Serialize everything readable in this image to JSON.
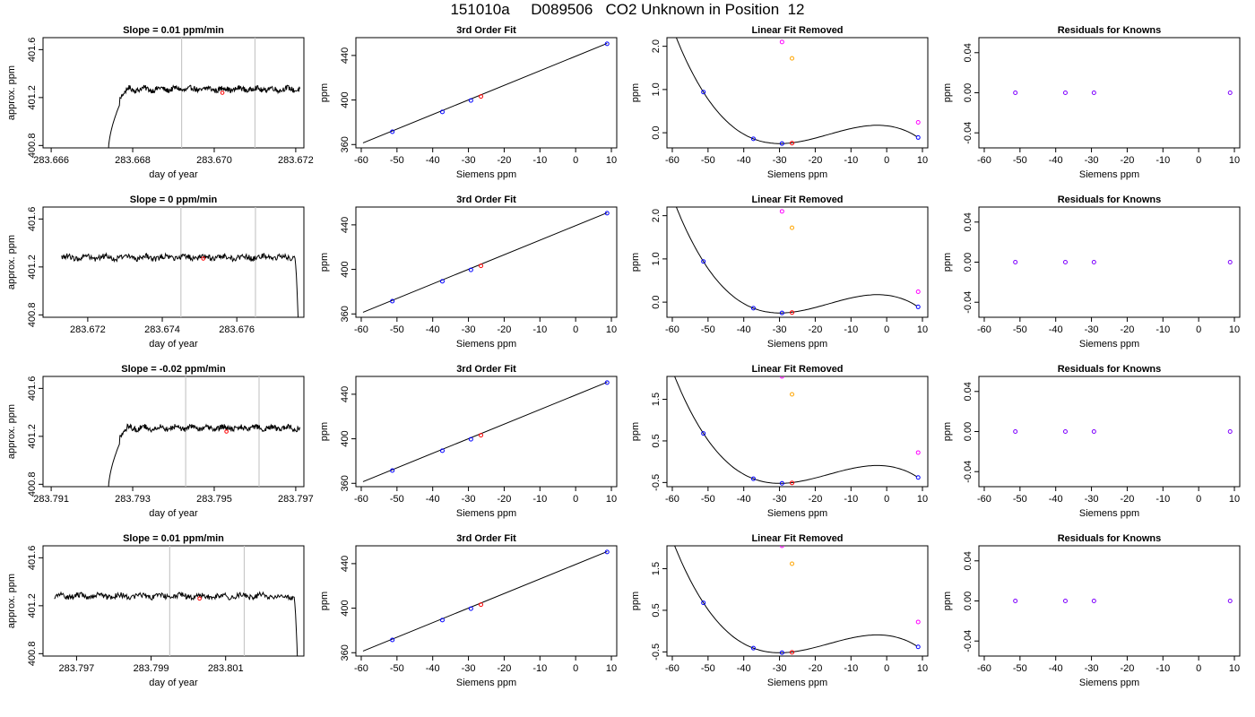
{
  "page": {
    "title": "151010a     D089506   CO2 Unknown in Position  12"
  },
  "chart_data": [
    {
      "type": "line",
      "title": "Slope =  0.01  ppm/min",
      "xlabel": "day of year",
      "ylabel": "approx. ppm",
      "xlim": [
        283.6658,
        283.6722
      ],
      "ylim": [
        400.78,
        401.7
      ],
      "xticks": [
        283.666,
        283.668,
        283.67,
        283.672
      ],
      "xtick_labels": [
        "283.666",
        "283.668",
        "283.670",
        "283.672"
      ],
      "yticks": [
        400.8,
        401.2,
        401.6
      ],
      "ytick_labels": [
        "400.8",
        "401.2",
        "401.6"
      ],
      "vlines": [
        283.6692,
        283.671
      ],
      "highlight": {
        "x": 283.6702,
        "y": 401.24
      },
      "shape": "rise",
      "start": 283.6674,
      "end": 283.6721,
      "level": 401.27
    },
    {
      "type": "scatter",
      "title": "3rd Order Fit",
      "xlabel": "Siemens ppm",
      "ylabel": "ppm",
      "xlim": [
        -61.5,
        11.5
      ],
      "ylim": [
        357,
        456
      ],
      "xticks": [
        -60,
        -50,
        -40,
        -30,
        -20,
        -10,
        0,
        10
      ],
      "xtick_labels": [
        "-60",
        "-50",
        "-40",
        "-30",
        "-20",
        "-10",
        "0",
        "10"
      ],
      "yticks": [
        360,
        400,
        440
      ],
      "ytick_labels": [
        "360",
        "400",
        "440"
      ],
      "fit_line": {
        "x": [
          -59.5,
          8.8
        ],
        "y": [
          361.5,
          450.8
        ]
      },
      "series": [
        {
          "role": "knowns",
          "color": "#0000ff",
          "x": [
            -51.3,
            -37.3,
            -29.3,
            8.8
          ],
          "y": [
            371.5,
            389.3,
            399.6,
            450.5
          ]
        },
        {
          "role": "unknown",
          "color": "#ff0000",
          "x": [
            -26.5
          ],
          "y": [
            403.2
          ]
        }
      ]
    },
    {
      "type": "scatter",
      "title": "Linear Fit Removed",
      "xlabel": "Siemens ppm",
      "ylabel": "ppm",
      "xlim": [
        -61.5,
        11.5
      ],
      "ylim": [
        -0.35,
        2.2
      ],
      "xticks": [
        -60,
        -50,
        -40,
        -30,
        -20,
        -10,
        0,
        10
      ],
      "xtick_labels": [
        "-60",
        "-50",
        "-40",
        "-30",
        "-20",
        "-10",
        "0",
        "10"
      ],
      "yticks": [
        0.0,
        1.0,
        2.0
      ],
      "ytick_labels": [
        "0.0",
        "1.0",
        "2.0"
      ],
      "curve": {
        "a": 0.0002,
        "b": 0.0098,
        "c": 0,
        "d": 0
      },
      "series": [
        {
          "role": "knowns",
          "color": "#0000ff",
          "x": [
            -51.3,
            -37.3,
            -29.3,
            8.8
          ],
          "y": [
            0.94,
            -0.14,
            -0.25,
            -0.11
          ]
        },
        {
          "role": "unknown",
          "color": "#ff0000",
          "x": [
            -26.5
          ],
          "y": [
            -0.24
          ]
        },
        {
          "role": "magenta",
          "color": "#ff00ff",
          "x": [
            -29.3,
            8.8
          ],
          "y": [
            2.1,
            0.24
          ]
        },
        {
          "role": "orange",
          "color": "#ffa500",
          "x": [
            -26.5
          ],
          "y": [
            1.72
          ]
        }
      ]
    },
    {
      "type": "scatter",
      "title": "Residuals for Knowns",
      "xlabel": "Siemens ppm",
      "ylabel": "ppm",
      "xlim": [
        -61.5,
        11.5
      ],
      "ylim": [
        -0.055,
        0.055
      ],
      "xticks": [
        -60,
        -50,
        -40,
        -30,
        -20,
        -10,
        0,
        10
      ],
      "xtick_labels": [
        "-60",
        "-50",
        "-40",
        "-30",
        "-20",
        "-10",
        "0",
        "10"
      ],
      "yticks": [
        -0.04,
        0.0,
        0.04
      ],
      "ytick_labels": [
        "-0.04",
        "0.00",
        "0.04"
      ],
      "series": [
        {
          "role": "residuals",
          "color": "#7f00ff",
          "x": [
            -51.3,
            -37.3,
            -29.3,
            8.8
          ],
          "y": [
            0,
            0,
            0,
            0
          ]
        }
      ]
    },
    {
      "type": "line",
      "title": "Slope =  0  ppm/min",
      "xlabel": "day of year",
      "ylabel": "approx. ppm",
      "xlim": [
        283.6708,
        283.6778
      ],
      "ylim": [
        400.78,
        401.7
      ],
      "xticks": [
        283.672,
        283.674,
        283.676
      ],
      "xtick_labels": [
        "283.672",
        "283.674",
        "283.676"
      ],
      "yticks": [
        400.8,
        401.2,
        401.6
      ],
      "ytick_labels": [
        "400.8",
        "401.2",
        "401.6"
      ],
      "vlines": [
        283.6745,
        283.6765
      ],
      "highlight": {
        "x": 283.6751,
        "y": 401.27
      },
      "shape": "fall",
      "start": 283.6713,
      "end": 283.67765,
      "level": 401.28
    },
    {
      "type": "scatter",
      "title": "3rd Order Fit",
      "xlabel": "Siemens ppm",
      "ylabel": "ppm",
      "xlim": [
        -61.5,
        11.5
      ],
      "ylim": [
        357,
        456
      ],
      "xticks": [
        -60,
        -50,
        -40,
        -30,
        -20,
        -10,
        0,
        10
      ],
      "xtick_labels": [
        "-60",
        "-50",
        "-40",
        "-30",
        "-20",
        "-10",
        "0",
        "10"
      ],
      "yticks": [
        360,
        400,
        440
      ],
      "ytick_labels": [
        "360",
        "400",
        "440"
      ],
      "fit_line": {
        "x": [
          -59.5,
          8.8
        ],
        "y": [
          361.5,
          450.8
        ]
      },
      "series": [
        {
          "role": "knowns",
          "color": "#0000ff",
          "x": [
            -51.3,
            -37.3,
            -29.3,
            8.8
          ],
          "y": [
            371.5,
            389.3,
            399.6,
            450.5
          ]
        },
        {
          "role": "unknown",
          "color": "#ff0000",
          "x": [
            -26.5
          ],
          "y": [
            403.2
          ]
        }
      ]
    },
    {
      "type": "scatter",
      "title": "Linear Fit Removed",
      "xlabel": "Siemens ppm",
      "ylabel": "ppm",
      "xlim": [
        -61.5,
        11.5
      ],
      "ylim": [
        -0.35,
        2.2
      ],
      "xticks": [
        -60,
        -50,
        -40,
        -30,
        -20,
        -10,
        0,
        10
      ],
      "xtick_labels": [
        "-60",
        "-50",
        "-40",
        "-30",
        "-20",
        "-10",
        "0",
        "10"
      ],
      "yticks": [
        0.0,
        1.0,
        2.0
      ],
      "ytick_labels": [
        "0.0",
        "1.0",
        "2.0"
      ],
      "curve": {
        "a": 0.0002,
        "b": 0.0098,
        "c": 0,
        "d": 0
      },
      "series": [
        {
          "role": "knowns",
          "color": "#0000ff",
          "x": [
            -51.3,
            -37.3,
            -29.3,
            8.8
          ],
          "y": [
            0.94,
            -0.14,
            -0.25,
            -0.11
          ]
        },
        {
          "role": "unknown",
          "color": "#ff0000",
          "x": [
            -26.5
          ],
          "y": [
            -0.24
          ]
        },
        {
          "role": "magenta",
          "color": "#ff00ff",
          "x": [
            -29.3,
            8.8
          ],
          "y": [
            2.1,
            0.24
          ]
        },
        {
          "role": "orange",
          "color": "#ffa500",
          "x": [
            -26.5
          ],
          "y": [
            1.72
          ]
        }
      ]
    },
    {
      "type": "scatter",
      "title": "Residuals for Knowns",
      "xlabel": "Siemens ppm",
      "ylabel": "ppm",
      "xlim": [
        -61.5,
        11.5
      ],
      "ylim": [
        -0.055,
        0.055
      ],
      "xticks": [
        -60,
        -50,
        -40,
        -30,
        -20,
        -10,
        0,
        10
      ],
      "xtick_labels": [
        "-60",
        "-50",
        "-40",
        "-30",
        "-20",
        "-10",
        "0",
        "10"
      ],
      "yticks": [
        -0.04,
        0.0,
        0.04
      ],
      "ytick_labels": [
        "-0.04",
        "0.00",
        "0.04"
      ],
      "series": [
        {
          "role": "residuals",
          "color": "#7f00ff",
          "x": [
            -51.3,
            -37.3,
            -29.3,
            8.8
          ],
          "y": [
            0,
            0,
            0,
            0
          ]
        }
      ]
    },
    {
      "type": "line",
      "title": "Slope =  -0.02  ppm/min",
      "xlabel": "day of year",
      "ylabel": "approx. ppm",
      "xlim": [
        283.7908,
        283.7972
      ],
      "ylim": [
        400.78,
        401.7
      ],
      "xticks": [
        283.791,
        283.793,
        283.795,
        283.797
      ],
      "xtick_labels": [
        "283.791",
        "283.793",
        "283.795",
        "283.797"
      ],
      "yticks": [
        400.8,
        401.2,
        401.6
      ],
      "ytick_labels": [
        "400.8",
        "401.2",
        "401.6"
      ],
      "vlines": [
        283.7943,
        283.7961
      ],
      "highlight": {
        "x": 283.7953,
        "y": 401.24
      },
      "shape": "rise",
      "start": 283.7924,
      "end": 283.7971,
      "level": 401.27
    },
    {
      "type": "scatter",
      "title": "3rd Order Fit",
      "xlabel": "Siemens ppm",
      "ylabel": "ppm",
      "xlim": [
        -61.5,
        11.5
      ],
      "ylim": [
        357,
        456
      ],
      "xticks": [
        -60,
        -50,
        -40,
        -30,
        -20,
        -10,
        0,
        10
      ],
      "xtick_labels": [
        "-60",
        "-50",
        "-40",
        "-30",
        "-20",
        "-10",
        "0",
        "10"
      ],
      "yticks": [
        360,
        400,
        440
      ],
      "ytick_labels": [
        "360",
        "400",
        "440"
      ],
      "fit_line": {
        "x": [
          -59.5,
          8.8
        ],
        "y": [
          361.5,
          450.8
        ]
      },
      "series": [
        {
          "role": "knowns",
          "color": "#0000ff",
          "x": [
            -51.3,
            -37.3,
            -29.3,
            8.8
          ],
          "y": [
            371.5,
            389.3,
            399.6,
            450.5
          ]
        },
        {
          "role": "unknown",
          "color": "#ff0000",
          "x": [
            -26.5
          ],
          "y": [
            403.2
          ]
        }
      ]
    },
    {
      "type": "scatter",
      "title": "Linear Fit Removed",
      "xlabel": "Siemens ppm",
      "ylabel": "ppm",
      "xlim": [
        -61.5,
        11.5
      ],
      "ylim": [
        -0.6,
        2.05
      ],
      "xticks": [
        -60,
        -50,
        -40,
        -30,
        -20,
        -10,
        0,
        10
      ],
      "xtick_labels": [
        "-60",
        "-50",
        "-40",
        "-30",
        "-20",
        "-10",
        "0",
        "10"
      ],
      "yticks": [
        -0.5,
        0.5,
        1.5
      ],
      "ytick_labels": [
        "-0.5",
        "0.5",
        "1.5"
      ],
      "curve": {
        "a": 0.0002,
        "b": 0.0098,
        "c": 0,
        "d": 0
      },
      "series": [
        {
          "role": "knowns",
          "color": "#0000ff",
          "x": [
            -51.3,
            -37.3,
            -29.3,
            8.8
          ],
          "y": [
            0.68,
            -0.41,
            -0.52,
            -0.38
          ]
        },
        {
          "role": "unknown",
          "color": "#ff0000",
          "x": [
            -26.5
          ],
          "y": [
            -0.51
          ]
        },
        {
          "role": "magenta",
          "color": "#ff00ff",
          "x": [
            -29.3,
            8.8
          ],
          "y": [
            2.05,
            0.22
          ]
        },
        {
          "role": "orange",
          "color": "#ffa500",
          "x": [
            -26.5
          ],
          "y": [
            1.62
          ]
        }
      ]
    },
    {
      "type": "scatter",
      "title": "Residuals for Knowns",
      "xlabel": "Siemens ppm",
      "ylabel": "ppm",
      "xlim": [
        -61.5,
        11.5
      ],
      "ylim": [
        -0.055,
        0.055
      ],
      "xticks": [
        -60,
        -50,
        -40,
        -30,
        -20,
        -10,
        0,
        10
      ],
      "xtick_labels": [
        "-60",
        "-50",
        "-40",
        "-30",
        "-20",
        "-10",
        "0",
        "10"
      ],
      "yticks": [
        -0.04,
        0.0,
        0.04
      ],
      "ytick_labels": [
        "-0.04",
        "0.00",
        "0.04"
      ],
      "series": [
        {
          "role": "residuals",
          "color": "#7f00ff",
          "x": [
            -51.3,
            -37.3,
            -29.3,
            8.8
          ],
          "y": [
            0,
            0,
            0,
            0
          ]
        }
      ]
    },
    {
      "type": "line",
      "title": "Slope =  0.01  ppm/min",
      "xlabel": "day of year",
      "ylabel": "approx. ppm",
      "xlim": [
        283.7961,
        283.8031
      ],
      "ylim": [
        400.78,
        401.7
      ],
      "xticks": [
        283.797,
        283.799,
        283.801
      ],
      "xtick_labels": [
        "283.797",
        "283.799",
        "283.801"
      ],
      "yticks": [
        400.8,
        401.2,
        401.6
      ],
      "ytick_labels": [
        "400.8",
        "401.2",
        "401.6"
      ],
      "vlines": [
        283.7995,
        283.8015
      ],
      "highlight": {
        "x": 283.8003,
        "y": 401.26
      },
      "shape": "fall",
      "start": 283.7964,
      "end": 283.80293,
      "level": 401.28
    },
    {
      "type": "scatter",
      "title": "3rd Order Fit",
      "xlabel": "Siemens ppm",
      "ylabel": "ppm",
      "xlim": [
        -61.5,
        11.5
      ],
      "ylim": [
        357,
        456
      ],
      "xticks": [
        -60,
        -50,
        -40,
        -30,
        -20,
        -10,
        0,
        10
      ],
      "xtick_labels": [
        "-60",
        "-50",
        "-40",
        "-30",
        "-20",
        "-10",
        "0",
        "10"
      ],
      "yticks": [
        360,
        400,
        440
      ],
      "ytick_labels": [
        "360",
        "400",
        "440"
      ],
      "fit_line": {
        "x": [
          -59.5,
          8.8
        ],
        "y": [
          361.5,
          450.8
        ]
      },
      "series": [
        {
          "role": "knowns",
          "color": "#0000ff",
          "x": [
            -51.3,
            -37.3,
            -29.3,
            8.8
          ],
          "y": [
            371.5,
            389.3,
            399.6,
            450.5
          ]
        },
        {
          "role": "unknown",
          "color": "#ff0000",
          "x": [
            -26.5
          ],
          "y": [
            403.2
          ]
        }
      ]
    },
    {
      "type": "scatter",
      "title": "Linear Fit Removed",
      "xlabel": "Siemens ppm",
      "ylabel": "ppm",
      "xlim": [
        -61.5,
        11.5
      ],
      "ylim": [
        -0.6,
        2.05
      ],
      "xticks": [
        -60,
        -50,
        -40,
        -30,
        -20,
        -10,
        0,
        10
      ],
      "xtick_labels": [
        "-60",
        "-50",
        "-40",
        "-30",
        "-20",
        "-10",
        "0",
        "10"
      ],
      "yticks": [
        -0.5,
        0.5,
        1.5
      ],
      "ytick_labels": [
        "-0.5",
        "0.5",
        "1.5"
      ],
      "curve": {
        "a": 0.0002,
        "b": 0.0098,
        "c": 0,
        "d": 0
      },
      "series": [
        {
          "role": "knowns",
          "color": "#0000ff",
          "x": [
            -51.3,
            -37.3,
            -29.3,
            8.8
          ],
          "y": [
            0.68,
            -0.41,
            -0.52,
            -0.38
          ]
        },
        {
          "role": "unknown",
          "color": "#ff0000",
          "x": [
            -26.5
          ],
          "y": [
            -0.51
          ]
        },
        {
          "role": "magenta",
          "color": "#ff00ff",
          "x": [
            -29.3,
            8.8
          ],
          "y": [
            2.05,
            0.22
          ]
        },
        {
          "role": "orange",
          "color": "#ffa500",
          "x": [
            -26.5
          ],
          "y": [
            1.62
          ]
        }
      ]
    },
    {
      "type": "scatter",
      "title": "Residuals for Knowns",
      "xlabel": "Siemens ppm",
      "ylabel": "ppm",
      "xlim": [
        -61.5,
        11.5
      ],
      "ylim": [
        -0.055,
        0.055
      ],
      "xticks": [
        -60,
        -50,
        -40,
        -30,
        -20,
        -10,
        0,
        10
      ],
      "xtick_labels": [
        "-60",
        "-50",
        "-40",
        "-30",
        "-20",
        "-10",
        "0",
        "10"
      ],
      "yticks": [
        -0.04,
        0.0,
        0.04
      ],
      "ytick_labels": [
        "-0.04",
        "0.00",
        "0.04"
      ],
      "series": [
        {
          "role": "residuals",
          "color": "#7f00ff",
          "x": [
            -51.3,
            -37.3,
            -29.3,
            8.8
          ],
          "y": [
            0,
            0,
            0,
            0
          ]
        }
      ]
    }
  ]
}
